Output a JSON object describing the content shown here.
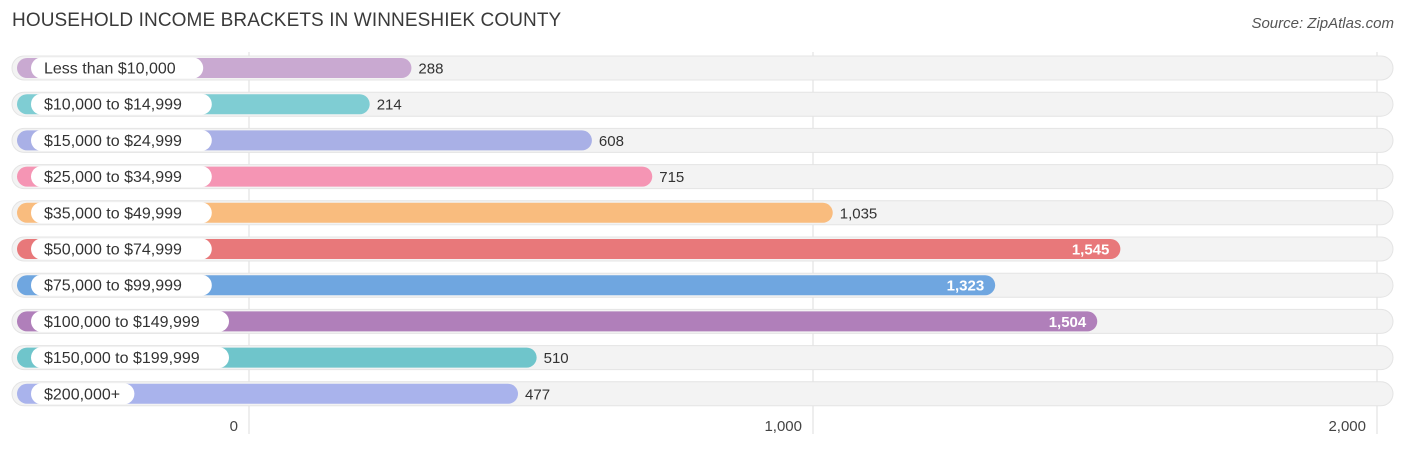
{
  "title": "HOUSEHOLD INCOME BRACKETS IN WINNESHIEK COUNTY",
  "source": "Source: ZipAtlas.com",
  "chart_data": {
    "type": "bar",
    "orientation": "horizontal",
    "title": "HOUSEHOLD INCOME BRACKETS IN WINNESHIEK COUNTY",
    "categories": [
      "Less than $10,000",
      "$10,000 to $14,999",
      "$15,000 to $24,999",
      "$25,000 to $34,999",
      "$35,000 to $49,999",
      "$50,000 to $74,999",
      "$75,000 to $99,999",
      "$100,000 to $149,999",
      "$150,000 to $199,999",
      "$200,000+"
    ],
    "values": [
      288,
      214,
      608,
      715,
      1035,
      1545,
      1323,
      1504,
      510,
      477
    ],
    "value_labels": [
      "288",
      "214",
      "608",
      "715",
      "1,035",
      "1,545",
      "1,323",
      "1,504",
      "510",
      "477"
    ],
    "colors": [
      "#c9a9d1",
      "#7fcdd3",
      "#a9b0e6",
      "#f595b4",
      "#f9bc7e",
      "#e8787a",
      "#6fa6e0",
      "#b07fba",
      "#6fc5cb",
      "#a9b3ec"
    ],
    "x_ticks": [
      0,
      1000,
      2000
    ],
    "x_tick_labels": [
      "0",
      "1,000",
      "2,000"
    ],
    "xlim": [
      0,
      2000
    ],
    "grid": true,
    "legend": "none"
  }
}
